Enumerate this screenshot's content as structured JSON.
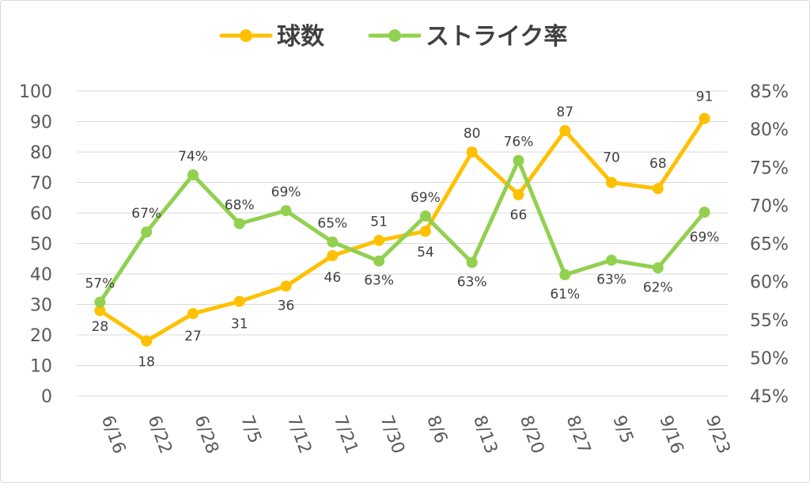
{
  "chart_data": {
    "type": "line",
    "categories": [
      "6/16",
      "6/22",
      "6/28",
      "7/5",
      "7/12",
      "7/21",
      "7/30",
      "8/6",
      "8/13",
      "8/20",
      "8/27",
      "9/5",
      "9/16",
      "9/23"
    ],
    "series": [
      {
        "name": "球数",
        "axis": "left",
        "color": "#FFC000",
        "values": [
          28,
          18,
          27,
          31,
          36,
          46,
          51,
          54,
          80,
          66,
          87,
          70,
          68,
          91
        ],
        "labels": [
          "28",
          "18",
          "27",
          "31",
          "36",
          "46",
          "51",
          "54",
          "80",
          "66",
          "87",
          "70",
          "68",
          "91"
        ]
      },
      {
        "name": "ストライク率",
        "axis": "right",
        "color": "#92D050",
        "values": [
          57.3,
          66.5,
          74.0,
          67.6,
          69.3,
          65.2,
          62.7,
          68.6,
          62.5,
          75.9,
          60.9,
          62.8,
          61.8,
          69.1
        ],
        "labels": [
          "57%",
          "67%",
          "74%",
          "68%",
          "69%",
          "65%",
          "63%",
          "69%",
          "63%",
          "76%",
          "61%",
          "63%",
          "62%",
          "69%"
        ]
      }
    ],
    "y_left": {
      "min": 0,
      "max": 100,
      "ticks": [
        "0",
        "10",
        "20",
        "30",
        "40",
        "50",
        "60",
        "70",
        "80",
        "90",
        "100"
      ]
    },
    "y_right": {
      "min": 45,
      "max": 85,
      "ticks": [
        "45%",
        "50%",
        "55%",
        "60%",
        "65%",
        "70%",
        "75%",
        "80%",
        "85%"
      ]
    },
    "grid": true,
    "legend_position": "top"
  }
}
